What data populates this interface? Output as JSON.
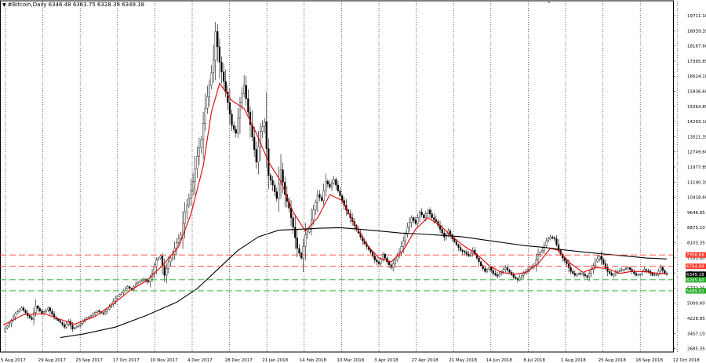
{
  "header": {
    "symbol_label": "#Bitcoin,Daily",
    "ohlc": "6346.48 6363.75 6328.39 6349.18",
    "dropdown_glyph": "▼"
  },
  "chart_data": {
    "type": "candlestick",
    "title": "#Bitcoin,Daily",
    "ohlc_last": {
      "open": 6346.48,
      "high": 6363.75,
      "low": 6328.39,
      "close": 6349.18
    },
    "y_ticks": [
      "19711.10",
      "18939.35",
      "18167.60",
      "17395.85",
      "16624.10",
      "15836.60",
      "15064.85",
      "14293.10",
      "13521.35",
      "12749.60",
      "11977.85",
      "11190.35",
      "10418.60",
      "9646.85",
      "8875.10",
      "8103.35",
      "7331.60",
      "6544.10",
      "5772.35",
      "5000.60",
      "4228.85",
      "3457.10",
      "2685.35"
    ],
    "x_ticks": [
      "5 Aug 2017",
      "29 Aug 2017",
      "23 Sep 2017",
      "17 Oct 2017",
      "10 Nov 2017",
      "4 Dec 2017",
      "28 Dec 2017",
      "21 Jan 2018",
      "14 Feb 2018",
      "10 Mar 2018",
      "3 Apr 2018",
      "27 Apr 2018",
      "21 May 2018",
      "14 Jun 2018",
      "8 Jul 2018",
      "1 Aug 2018",
      "25 Aug 2018",
      "18 Sep 2018",
      "12 Oct 2018"
    ],
    "ylim": [
      2300,
      20400
    ],
    "grid": "vertical dotted",
    "price_levels": [
      {
        "label": "7358.68",
        "value": 7358.68,
        "color": "#ff3b30",
        "style": "dashed"
      },
      {
        "label": "6764.99",
        "value": 6764.99,
        "color": "#ff3b30",
        "style": "dashed"
      },
      {
        "label": "6349.18",
        "value": 6349.18,
        "color": "#000000",
        "style": "current"
      },
      {
        "label": "6065.60",
        "value": 6065.6,
        "color": "#22aa22",
        "style": "dashed"
      },
      {
        "label": "5489.02",
        "value": 5489.02,
        "color": "#22aa22",
        "style": "dashed"
      }
    ],
    "close_path": [
      [
        0,
        3400
      ],
      [
        3,
        3800
      ],
      [
        6,
        4300
      ],
      [
        9,
        4600
      ],
      [
        12,
        4200
      ],
      [
        14,
        4000
      ],
      [
        16,
        4700
      ],
      [
        19,
        4300
      ],
      [
        22,
        4600
      ],
      [
        25,
        4100
      ],
      [
        28,
        3850
      ],
      [
        30,
        3600
      ],
      [
        32,
        3900
      ],
      [
        34,
        3500
      ],
      [
        37,
        3700
      ],
      [
        40,
        4000
      ],
      [
        43,
        4200
      ],
      [
        46,
        4450
      ],
      [
        49,
        4300
      ],
      [
        52,
        4650
      ],
      [
        55,
        5100
      ],
      [
        58,
        5400
      ],
      [
        61,
        5700
      ],
      [
        63,
        5550
      ],
      [
        65,
        5850
      ],
      [
        67,
        6000
      ],
      [
        69,
        6100
      ],
      [
        71,
        5950
      ],
      [
        73,
        6400
      ],
      [
        75,
        7100
      ],
      [
        77,
        7300
      ],
      [
        79,
        6300
      ],
      [
        81,
        7000
      ],
      [
        83,
        7400
      ],
      [
        85,
        8000
      ],
      [
        87,
        8400
      ],
      [
        89,
        9600
      ],
      [
        91,
        10300
      ],
      [
        93,
        11200
      ],
      [
        95,
        12500
      ],
      [
        97,
        13400
      ],
      [
        99,
        15000
      ],
      [
        101,
        16200
      ],
      [
        103,
        17500
      ],
      [
        104,
        19000
      ],
      [
        106,
        17400
      ],
      [
        108,
        16400
      ],
      [
        110,
        15300
      ],
      [
        112,
        14100
      ],
      [
        114,
        13700
      ],
      [
        116,
        15300
      ],
      [
        118,
        16200
      ],
      [
        120,
        14800
      ],
      [
        122,
        13500
      ],
      [
        124,
        12200
      ],
      [
        126,
        13800
      ],
      [
        128,
        14300
      ],
      [
        130,
        11500
      ],
      [
        132,
        11000
      ],
      [
        134,
        10300
      ],
      [
        136,
        11800
      ],
      [
        138,
        10500
      ],
      [
        140,
        9800
      ],
      [
        142,
        8800
      ],
      [
        144,
        7700
      ],
      [
        146,
        7200
      ],
      [
        148,
        8400
      ],
      [
        150,
        8700
      ],
      [
        152,
        9700
      ],
      [
        154,
        10500
      ],
      [
        156,
        10200
      ],
      [
        158,
        11200
      ],
      [
        160,
        10900
      ],
      [
        162,
        11300
      ],
      [
        164,
        10700
      ],
      [
        166,
        10200
      ],
      [
        168,
        9700
      ],
      [
        170,
        9300
      ],
      [
        172,
        8900
      ],
      [
        174,
        8500
      ],
      [
        176,
        8100
      ],
      [
        178,
        7800
      ],
      [
        180,
        7500
      ],
      [
        182,
        7100
      ],
      [
        184,
        6900
      ],
      [
        186,
        7400
      ],
      [
        188,
        7000
      ],
      [
        190,
        6700
      ],
      [
        192,
        7100
      ],
      [
        194,
        7500
      ],
      [
        196,
        8100
      ],
      [
        198,
        8800
      ],
      [
        200,
        9300
      ],
      [
        202,
        9000
      ],
      [
        204,
        9600
      ],
      [
        206,
        9300
      ],
      [
        208,
        9700
      ],
      [
        210,
        9300
      ],
      [
        212,
        9100
      ],
      [
        214,
        8700
      ],
      [
        216,
        8300
      ],
      [
        218,
        8600
      ],
      [
        220,
        8200
      ],
      [
        222,
        7900
      ],
      [
        224,
        7600
      ],
      [
        226,
        7500
      ],
      [
        228,
        7300
      ],
      [
        230,
        7600
      ],
      [
        232,
        7200
      ],
      [
        234,
        6800
      ],
      [
        236,
        6500
      ],
      [
        238,
        6700
      ],
      [
        240,
        6400
      ],
      [
        242,
        6250
      ],
      [
        244,
        6500
      ],
      [
        246,
        6700
      ],
      [
        248,
        6450
      ],
      [
        250,
        6200
      ],
      [
        252,
        6050
      ],
      [
        254,
        6300
      ],
      [
        256,
        6500
      ],
      [
        258,
        6700
      ],
      [
        260,
        6800
      ],
      [
        262,
        7400
      ],
      [
        264,
        7600
      ],
      [
        266,
        8100
      ],
      [
        268,
        8300
      ],
      [
        270,
        8200
      ],
      [
        272,
        7600
      ],
      [
        274,
        7200
      ],
      [
        276,
        6900
      ],
      [
        278,
        6500
      ],
      [
        280,
        6300
      ],
      [
        282,
        6400
      ],
      [
        284,
        6350
      ],
      [
        286,
        6200
      ],
      [
        288,
        6600
      ],
      [
        290,
        7000
      ],
      [
        292,
        7300
      ],
      [
        294,
        6900
      ],
      [
        296,
        6500
      ],
      [
        298,
        6300
      ],
      [
        300,
        6450
      ],
      [
        302,
        6550
      ],
      [
        304,
        6600
      ],
      [
        306,
        6700
      ],
      [
        308,
        6500
      ],
      [
        310,
        6300
      ],
      [
        312,
        6350
      ],
      [
        314,
        6600
      ],
      [
        316,
        6500
      ],
      [
        318,
        6300
      ],
      [
        320,
        6320
      ],
      [
        322,
        6700
      ],
      [
        324,
        6400
      ],
      [
        325,
        6349
      ]
    ],
    "series": [
      {
        "name": "",
        "kind": "moving_average_fast",
        "color": "#e00000",
        "points": [
          [
            0,
            3700
          ],
          [
            10,
            4250
          ],
          [
            20,
            4300
          ],
          [
            28,
            4000
          ],
          [
            35,
            3750
          ],
          [
            45,
            4150
          ],
          [
            55,
            4900
          ],
          [
            62,
            5500
          ],
          [
            70,
            6000
          ],
          [
            78,
            6800
          ],
          [
            86,
            7800
          ],
          [
            92,
            9500
          ],
          [
            98,
            12000
          ],
          [
            102,
            14800
          ],
          [
            106,
            16300
          ],
          [
            112,
            15400
          ],
          [
            118,
            15000
          ],
          [
            124,
            13700
          ],
          [
            130,
            12200
          ],
          [
            136,
            11200
          ],
          [
            142,
            9600
          ],
          [
            148,
            8600
          ],
          [
            154,
            9300
          ],
          [
            160,
            10500
          ],
          [
            166,
            10200
          ],
          [
            172,
            9000
          ],
          [
            178,
            7900
          ],
          [
            184,
            7200
          ],
          [
            190,
            7000
          ],
          [
            196,
            7600
          ],
          [
            202,
            8700
          ],
          [
            208,
            9300
          ],
          [
            214,
            8900
          ],
          [
            220,
            8300
          ],
          [
            226,
            7800
          ],
          [
            232,
            7400
          ],
          [
            238,
            6800
          ],
          [
            244,
            6450
          ],
          [
            250,
            6350
          ],
          [
            256,
            6450
          ],
          [
            262,
            6900
          ],
          [
            268,
            7700
          ],
          [
            272,
            7600
          ],
          [
            278,
            6900
          ],
          [
            284,
            6450
          ],
          [
            290,
            6700
          ],
          [
            296,
            6650
          ],
          [
            302,
            6400
          ],
          [
            308,
            6500
          ],
          [
            314,
            6500
          ],
          [
            320,
            6400
          ],
          [
            325,
            6380
          ]
        ]
      },
      {
        "name": "",
        "kind": "moving_average_slow",
        "color": "#000000",
        "points": [
          [
            28,
            3050
          ],
          [
            40,
            3250
          ],
          [
            55,
            3600
          ],
          [
            70,
            4200
          ],
          [
            85,
            4900
          ],
          [
            95,
            5600
          ],
          [
            105,
            6600
          ],
          [
            115,
            7600
          ],
          [
            125,
            8300
          ],
          [
            135,
            8650
          ],
          [
            145,
            8700
          ],
          [
            155,
            8750
          ],
          [
            165,
            8780
          ],
          [
            175,
            8700
          ],
          [
            185,
            8600
          ],
          [
            195,
            8500
          ],
          [
            205,
            8450
          ],
          [
            215,
            8380
          ],
          [
            225,
            8300
          ],
          [
            235,
            8150
          ],
          [
            245,
            8000
          ],
          [
            255,
            7850
          ],
          [
            265,
            7750
          ],
          [
            275,
            7620
          ],
          [
            285,
            7500
          ],
          [
            295,
            7400
          ],
          [
            305,
            7300
          ],
          [
            315,
            7200
          ],
          [
            325,
            7150
          ]
        ]
      }
    ]
  },
  "colors": {
    "background": "#ffffff",
    "candle": "#000000",
    "grid": "#000000",
    "level_red": "#ff3b30",
    "level_green": "#22aa22",
    "ma_fast": "#e00000",
    "ma_slow": "#000000"
  }
}
